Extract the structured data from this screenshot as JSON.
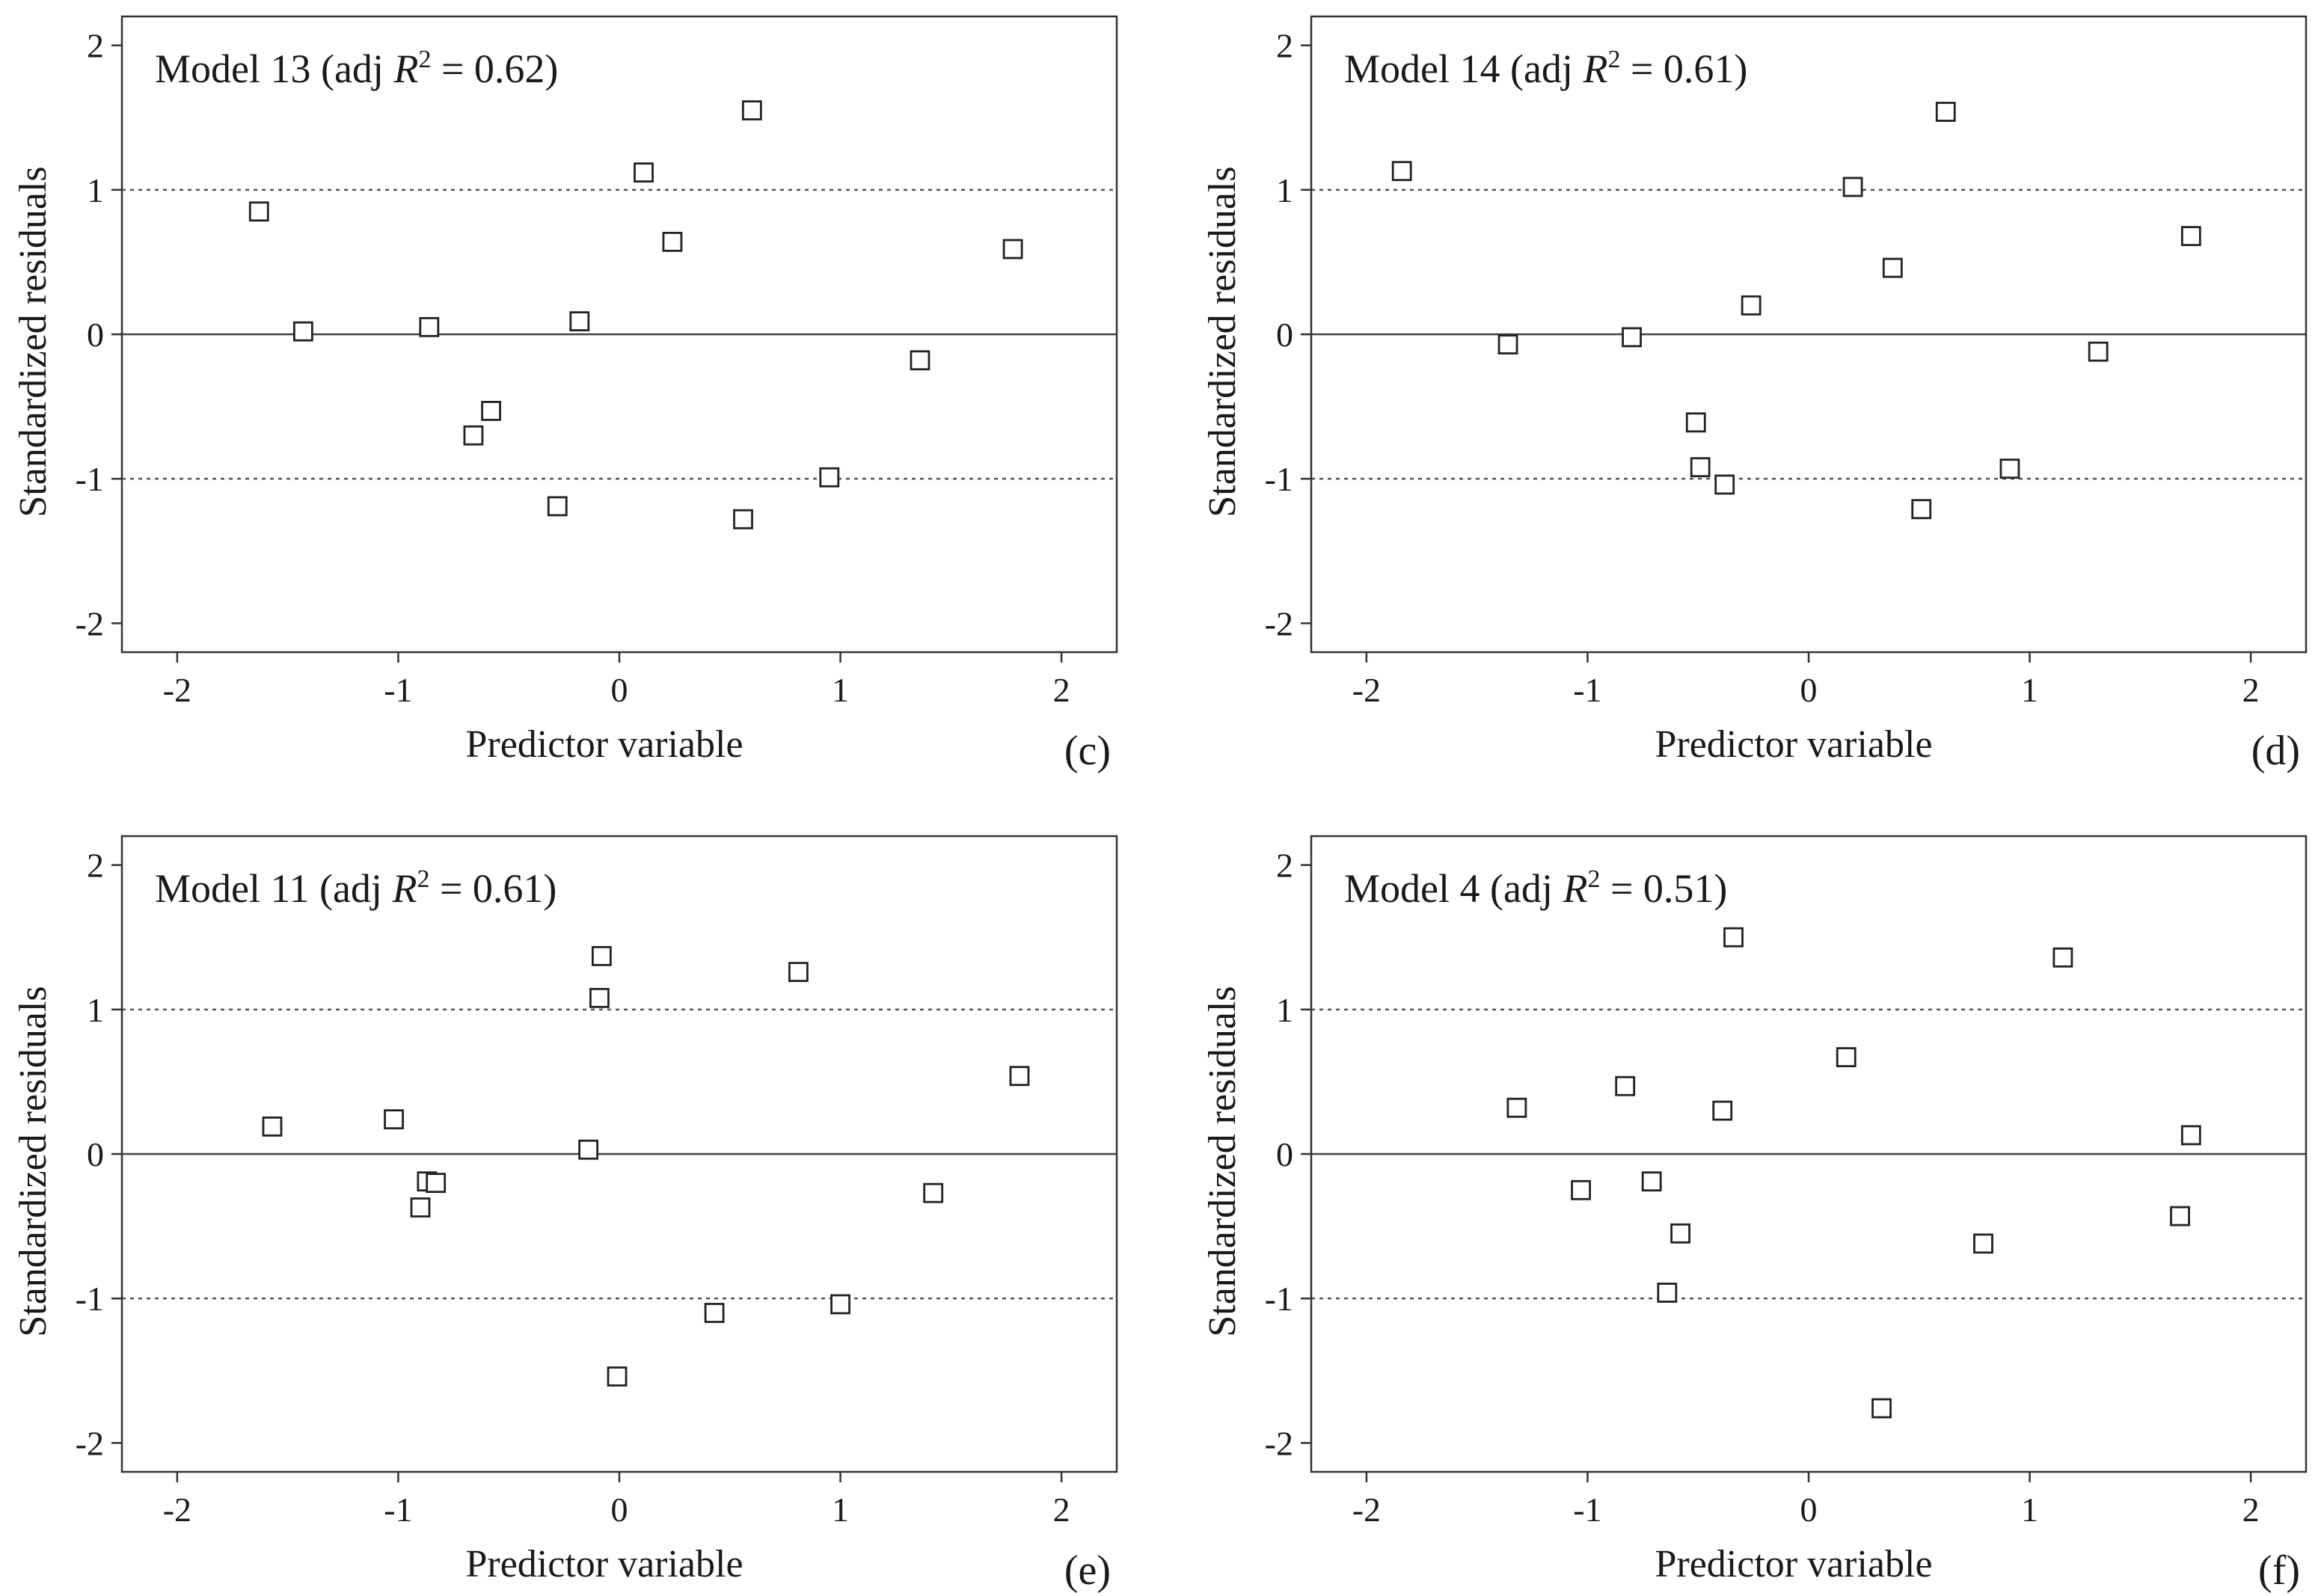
{
  "chart_data": [
    {
      "type": "scatter",
      "panel": "(c)",
      "title": "Model 13 (adj R² = 0.62)",
      "title_parts": {
        "prefix": "Model 13 (adj ",
        "r": "R",
        "sup": "2",
        "suffix": " = 0.62)"
      },
      "xlabel": "Predictor variable",
      "ylabel": "Standardized residuals",
      "xlim": [
        -2.25,
        2.25
      ],
      "ylim": [
        -2.2,
        2.2
      ],
      "xticks": [
        -2,
        -1,
        0,
        1,
        2
      ],
      "yticks": [
        -2,
        -1,
        0,
        1,
        2
      ],
      "reference_lines": [
        -1,
        0,
        1
      ],
      "points": [
        {
          "x": -1.63,
          "y": 0.85
        },
        {
          "x": -1.43,
          "y": 0.02
        },
        {
          "x": -0.86,
          "y": 0.05
        },
        {
          "x": -0.66,
          "y": -0.7
        },
        {
          "x": -0.58,
          "y": -0.53
        },
        {
          "x": -0.28,
          "y": -1.19
        },
        {
          "x": -0.18,
          "y": 0.09
        },
        {
          "x": 0.11,
          "y": 1.12
        },
        {
          "x": 0.24,
          "y": 0.64
        },
        {
          "x": 0.56,
          "y": -1.28
        },
        {
          "x": 0.6,
          "y": 1.55
        },
        {
          "x": 0.95,
          "y": -0.99
        },
        {
          "x": 1.36,
          "y": -0.18
        },
        {
          "x": 1.78,
          "y": 0.59
        }
      ]
    },
    {
      "type": "scatter",
      "panel": "(d)",
      "title": "Model 14 (adj R² = 0.61)",
      "title_parts": {
        "prefix": "Model 14 (adj ",
        "r": "R",
        "sup": "2",
        "suffix": " = 0.61)"
      },
      "xlabel": "Predictor variable",
      "ylabel": "Standardized residuals",
      "xlim": [
        -2.25,
        2.25
      ],
      "ylim": [
        -2.2,
        2.2
      ],
      "xticks": [
        -2,
        -1,
        0,
        1,
        2
      ],
      "yticks": [
        -2,
        -1,
        0,
        1,
        2
      ],
      "reference_lines": [
        -1,
        0,
        1
      ],
      "points": [
        {
          "x": -1.84,
          "y": 1.13
        },
        {
          "x": -1.36,
          "y": -0.07
        },
        {
          "x": -0.8,
          "y": -0.02
        },
        {
          "x": -0.51,
          "y": -0.61
        },
        {
          "x": -0.49,
          "y": -0.92
        },
        {
          "x": -0.38,
          "y": -1.04
        },
        {
          "x": -0.26,
          "y": 0.2
        },
        {
          "x": 0.2,
          "y": 1.02
        },
        {
          "x": 0.38,
          "y": 0.46
        },
        {
          "x": 0.51,
          "y": -1.21
        },
        {
          "x": 0.62,
          "y": 1.54
        },
        {
          "x": 0.91,
          "y": -0.93
        },
        {
          "x": 1.31,
          "y": -0.12
        },
        {
          "x": 1.73,
          "y": 0.68
        }
      ]
    },
    {
      "type": "scatter",
      "panel": "(e)",
      "title": "Model 11 (adj R² = 0.61)",
      "title_parts": {
        "prefix": "Model 11 (adj ",
        "r": "R",
        "sup": "2",
        "suffix": " = 0.61)"
      },
      "xlabel": "Predictor variable",
      "ylabel": "Standardized residuals",
      "xlim": [
        -2.25,
        2.25
      ],
      "ylim": [
        -2.2,
        2.2
      ],
      "xticks": [
        -2,
        -1,
        0,
        1,
        2
      ],
      "yticks": [
        -2,
        -1,
        0,
        1,
        2
      ],
      "reference_lines": [
        -1,
        0,
        1
      ],
      "points": [
        {
          "x": -1.57,
          "y": 0.19
        },
        {
          "x": -1.02,
          "y": 0.24
        },
        {
          "x": -0.9,
          "y": -0.37
        },
        {
          "x": -0.87,
          "y": -0.19
        },
        {
          "x": -0.83,
          "y": -0.2
        },
        {
          "x": -0.14,
          "y": 0.03
        },
        {
          "x": -0.09,
          "y": 1.08
        },
        {
          "x": -0.08,
          "y": 1.37
        },
        {
          "x": -0.01,
          "y": -1.54
        },
        {
          "x": 0.43,
          "y": -1.1
        },
        {
          "x": 0.81,
          "y": 1.26
        },
        {
          "x": 1.0,
          "y": -1.04
        },
        {
          "x": 1.42,
          "y": -0.27
        },
        {
          "x": 1.81,
          "y": 0.54
        }
      ]
    },
    {
      "type": "scatter",
      "panel": "(f)",
      "title": "Model 4 (adj R² = 0.51)",
      "title_parts": {
        "prefix": "Model 4 (adj ",
        "r": "R",
        "sup": "2",
        "suffix": " = 0.51)"
      },
      "xlabel": "Predictor variable",
      "ylabel": "Standardized residuals",
      "xlim": [
        -2.25,
        2.25
      ],
      "ylim": [
        -2.2,
        2.2
      ],
      "xticks": [
        -2,
        -1,
        0,
        1,
        2
      ],
      "yticks": [
        -2,
        -1,
        0,
        1,
        2
      ],
      "reference_lines": [
        -1,
        0,
        1
      ],
      "points": [
        {
          "x": -1.32,
          "y": 0.32
        },
        {
          "x": -1.03,
          "y": -0.25
        },
        {
          "x": -0.83,
          "y": 0.47
        },
        {
          "x": -0.71,
          "y": -0.19
        },
        {
          "x": -0.64,
          "y": -0.96
        },
        {
          "x": -0.58,
          "y": -0.55
        },
        {
          "x": -0.39,
          "y": 0.3
        },
        {
          "x": -0.34,
          "y": 1.5
        },
        {
          "x": 0.17,
          "y": 0.67
        },
        {
          "x": 0.33,
          "y": -1.76
        },
        {
          "x": 0.79,
          "y": -0.62
        },
        {
          "x": 1.15,
          "y": 1.36
        },
        {
          "x": 1.68,
          "y": -0.43
        },
        {
          "x": 1.73,
          "y": 0.13
        }
      ]
    }
  ]
}
